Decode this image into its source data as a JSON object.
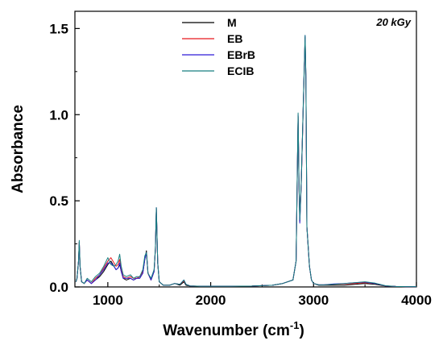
{
  "chart_data": {
    "type": "line",
    "title": "",
    "annotation": "20 kGy",
    "xlabel": "Wavenumber (cm",
    "xlabel_sup": "-1",
    "xlabel_end": ")",
    "ylabel": "Absorbance",
    "xlim": [
      680,
      4000
    ],
    "ylim": [
      0,
      1.6
    ],
    "x_ticks": [
      1000,
      2000,
      3000,
      4000
    ],
    "y_ticks": [
      0.0,
      0.5,
      1.0,
      1.5
    ],
    "x_tick_labels": [
      "1000",
      "2000",
      "3000",
      "4000"
    ],
    "y_tick_labels": [
      "0.0",
      "0.5",
      "1.0",
      "1.5"
    ],
    "legend_position": "top-center",
    "x": [
      690,
      700,
      715,
      722,
      730,
      745,
      770,
      800,
      840,
      880,
      920,
      960,
      1000,
      1030,
      1060,
      1080,
      1100,
      1115,
      1130,
      1150,
      1180,
      1220,
      1250,
      1280,
      1310,
      1340,
      1360,
      1375,
      1390,
      1420,
      1450,
      1462,
      1472,
      1485,
      1500,
      1540,
      1600,
      1650,
      1700,
      1740,
      1760,
      1800,
      1900,
      2000,
      2200,
      2400,
      2600,
      2700,
      2800,
      2830,
      2850,
      2858,
      2866,
      2880,
      2900,
      2918,
      2926,
      2935,
      2960,
      2980,
      3000,
      3050,
      3100,
      3200,
      3300,
      3400,
      3500,
      3600,
      3700,
      3800,
      3900,
      4000
    ],
    "series": [
      {
        "name": "M",
        "color": "#000000",
        "values": [
          0.03,
          0.05,
          0.15,
          0.26,
          0.12,
          0.03,
          0.02,
          0.04,
          0.02,
          0.04,
          0.06,
          0.09,
          0.13,
          0.15,
          0.12,
          0.1,
          0.11,
          0.13,
          0.09,
          0.05,
          0.04,
          0.05,
          0.04,
          0.05,
          0.05,
          0.08,
          0.16,
          0.21,
          0.08,
          0.04,
          0.09,
          0.22,
          0.46,
          0.14,
          0.03,
          0.01,
          0.01,
          0.02,
          0.01,
          0.03,
          0.01,
          0.005,
          0.004,
          0.004,
          0.004,
          0.005,
          0.01,
          0.02,
          0.04,
          0.15,
          0.99,
          0.6,
          0.38,
          0.6,
          1.05,
          1.45,
          1.2,
          0.35,
          0.12,
          0.04,
          0.02,
          0.01,
          0.01,
          0.01,
          0.01,
          0.015,
          0.02,
          0.015,
          0.005,
          0.003,
          0.002,
          0.002
        ]
      },
      {
        "name": "EB",
        "color": "#e8181e",
        "values": [
          0.03,
          0.05,
          0.15,
          0.26,
          0.12,
          0.03,
          0.02,
          0.04,
          0.02,
          0.05,
          0.07,
          0.11,
          0.15,
          0.17,
          0.14,
          0.12,
          0.13,
          0.16,
          0.1,
          0.06,
          0.05,
          0.06,
          0.05,
          0.05,
          0.06,
          0.09,
          0.17,
          0.2,
          0.08,
          0.04,
          0.09,
          0.22,
          0.45,
          0.14,
          0.03,
          0.01,
          0.01,
          0.02,
          0.015,
          0.035,
          0.015,
          0.006,
          0.004,
          0.004,
          0.004,
          0.005,
          0.01,
          0.02,
          0.04,
          0.15,
          0.99,
          0.6,
          0.4,
          0.6,
          1.05,
          1.45,
          1.2,
          0.35,
          0.12,
          0.04,
          0.02,
          0.012,
          0.012,
          0.015,
          0.018,
          0.02,
          0.025,
          0.02,
          0.006,
          0.003,
          0.002,
          0.002
        ]
      },
      {
        "name": "EBrB",
        "color": "#2d1bd6",
        "values": [
          0.03,
          0.05,
          0.15,
          0.26,
          0.12,
          0.03,
          0.02,
          0.04,
          0.02,
          0.04,
          0.07,
          0.1,
          0.14,
          0.14,
          0.12,
          0.1,
          0.11,
          0.14,
          0.09,
          0.05,
          0.05,
          0.05,
          0.04,
          0.05,
          0.05,
          0.08,
          0.16,
          0.2,
          0.08,
          0.04,
          0.09,
          0.22,
          0.46,
          0.14,
          0.03,
          0.01,
          0.01,
          0.02,
          0.015,
          0.04,
          0.015,
          0.006,
          0.004,
          0.004,
          0.004,
          0.005,
          0.01,
          0.02,
          0.04,
          0.15,
          1.0,
          0.6,
          0.37,
          0.6,
          1.05,
          1.46,
          1.2,
          0.35,
          0.12,
          0.04,
          0.02,
          0.012,
          0.012,
          0.018,
          0.02,
          0.025,
          0.028,
          0.02,
          0.006,
          0.003,
          0.002,
          0.002
        ]
      },
      {
        "name": "ECIB",
        "color": "#167f80",
        "values": [
          0.03,
          0.05,
          0.15,
          0.27,
          0.12,
          0.03,
          0.02,
          0.05,
          0.03,
          0.06,
          0.08,
          0.12,
          0.17,
          0.13,
          0.12,
          0.13,
          0.15,
          0.19,
          0.12,
          0.07,
          0.06,
          0.07,
          0.05,
          0.06,
          0.06,
          0.1,
          0.18,
          0.2,
          0.08,
          0.05,
          0.1,
          0.22,
          0.46,
          0.14,
          0.03,
          0.01,
          0.01,
          0.02,
          0.015,
          0.04,
          0.015,
          0.006,
          0.004,
          0.004,
          0.004,
          0.005,
          0.01,
          0.02,
          0.04,
          0.15,
          1.01,
          0.61,
          0.39,
          0.61,
          1.06,
          1.46,
          1.21,
          0.35,
          0.12,
          0.04,
          0.02,
          0.012,
          0.012,
          0.015,
          0.02,
          0.025,
          0.03,
          0.022,
          0.007,
          0.003,
          0.002,
          0.002
        ]
      }
    ]
  }
}
